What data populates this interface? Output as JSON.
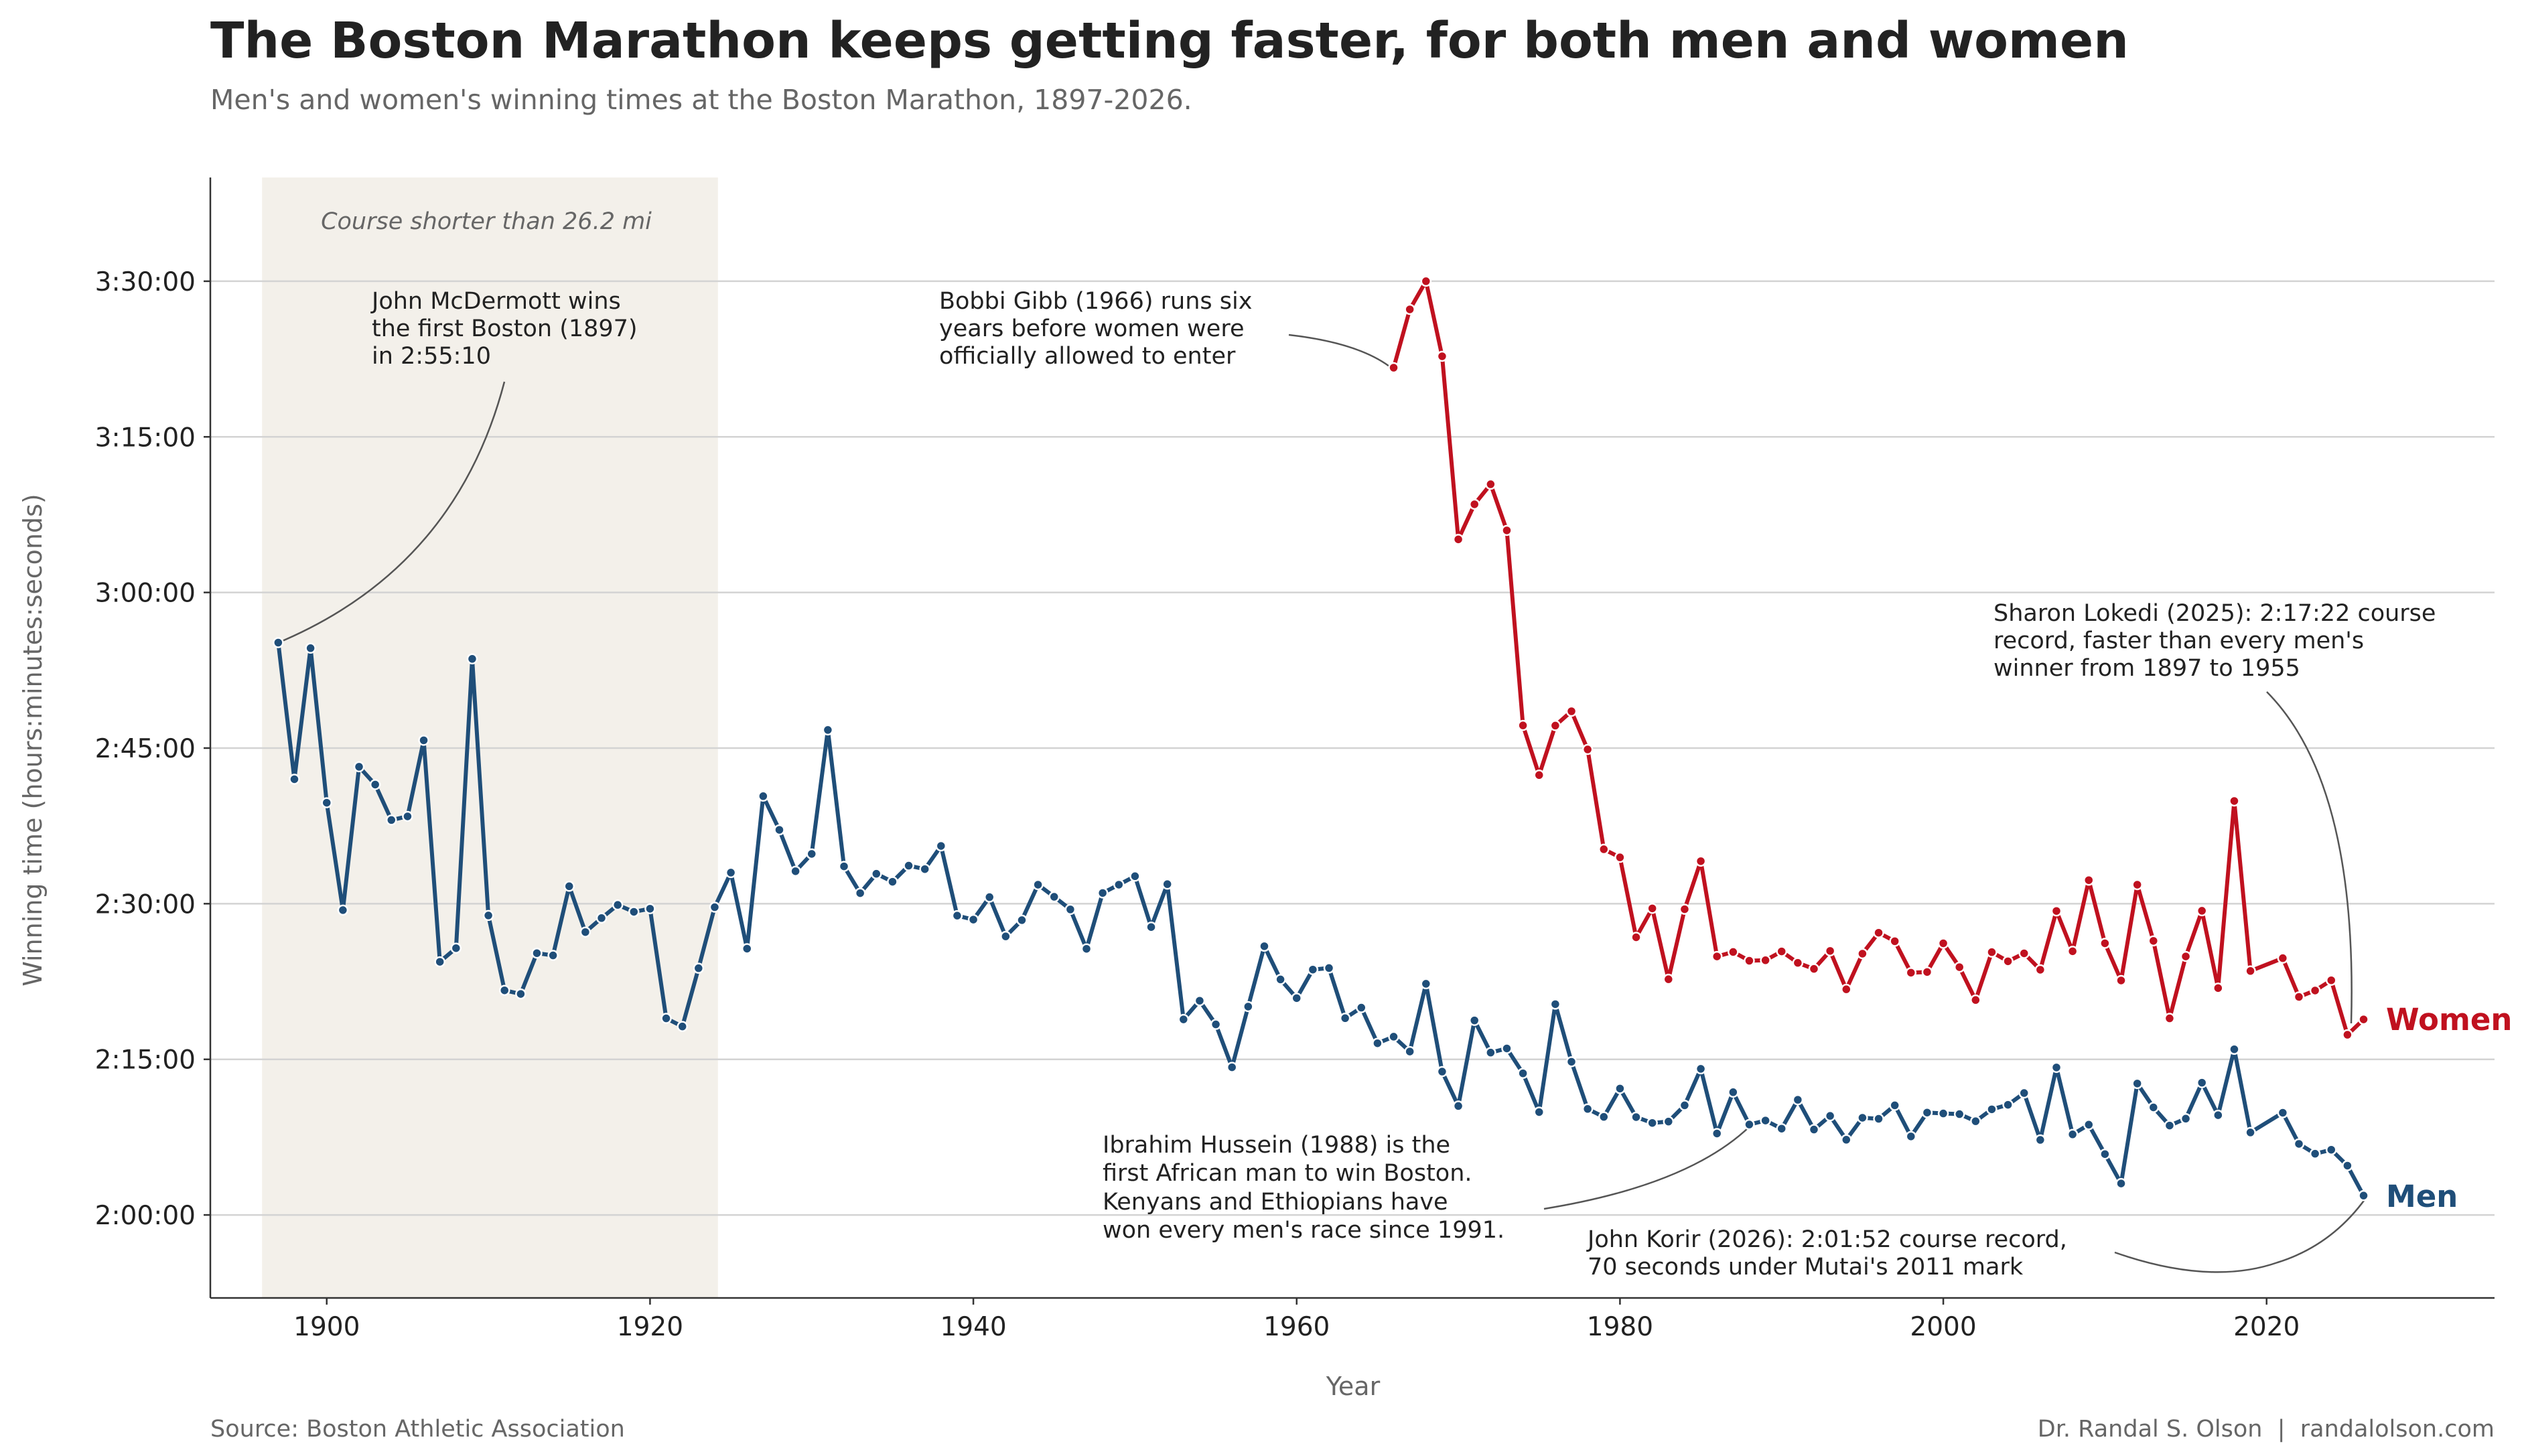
{
  "chart_data": {
    "type": "line",
    "title": "The Boston Marathon keeps getting faster, for both men and women",
    "subtitle": "Men's and women's winning times at the Boston Marathon, 1897-2026.",
    "xlabel": "Year",
    "ylabel": "Winning time (hours:minutes:seconds)",
    "xlim": [
      1892.8,
      2034.1
    ],
    "ylim": [
      "1:52:00",
      "3:40:00"
    ],
    "x_ticks": [
      "1900",
      "1920",
      "1940",
      "1960",
      "1980",
      "2000",
      "2020"
    ],
    "y_ticks": [
      "2:00:00",
      "2:15:00",
      "2:30:00",
      "2:45:00",
      "3:00:00",
      "3:15:00",
      "3:30:00"
    ],
    "grid": "horizontal",
    "shaded_region": {
      "x": [
        1896,
        1924.2
      ],
      "label": "Course shorter than 26.2 mi",
      "color": "#f3f0ea"
    },
    "series": [
      {
        "name": "Men",
        "color": "#1f4e79",
        "points": [
          [
            1897,
            "2:55:10"
          ],
          [
            1898,
            "2:42:00"
          ],
          [
            1899,
            "2:54:38"
          ],
          [
            1900,
            "2:39:44"
          ],
          [
            1901,
            "2:29:23"
          ],
          [
            1902,
            "2:43:12"
          ],
          [
            1903,
            "2:41:29"
          ],
          [
            1904,
            "2:38:04"
          ],
          [
            1905,
            "2:38:25"
          ],
          [
            1906,
            "2:45:45"
          ],
          [
            1907,
            "2:24:24"
          ],
          [
            1908,
            "2:25:43"
          ],
          [
            1909,
            "2:53:36"
          ],
          [
            1910,
            "2:28:52"
          ],
          [
            1911,
            "2:21:39"
          ],
          [
            1912,
            "2:21:18"
          ],
          [
            1913,
            "2:25:14"
          ],
          [
            1914,
            "2:25:01"
          ],
          [
            1915,
            "2:31:41"
          ],
          [
            1916,
            "2:27:16"
          ],
          [
            1917,
            "2:28:37"
          ],
          [
            1918,
            "2:29:53"
          ],
          [
            1919,
            "2:29:13"
          ],
          [
            1920,
            "2:29:31"
          ],
          [
            1921,
            "2:18:57"
          ],
          [
            1922,
            "2:18:10"
          ],
          [
            1923,
            "2:23:47"
          ],
          [
            1924,
            "2:29:40"
          ],
          [
            1925,
            "2:33:00"
          ],
          [
            1926,
            "2:25:40"
          ],
          [
            1927,
            "2:40:22"
          ],
          [
            1928,
            "2:37:07"
          ],
          [
            1929,
            "2:33:08"
          ],
          [
            1930,
            "2:34:48"
          ],
          [
            1931,
            "2:46:45"
          ],
          [
            1932,
            "2:33:36"
          ],
          [
            1933,
            "2:31:01"
          ],
          [
            1934,
            "2:32:53"
          ],
          [
            1935,
            "2:32:07"
          ],
          [
            1936,
            "2:33:40"
          ],
          [
            1937,
            "2:33:20"
          ],
          [
            1938,
            "2:35:34"
          ],
          [
            1939,
            "2:28:51"
          ],
          [
            1940,
            "2:28:28"
          ],
          [
            1941,
            "2:30:38"
          ],
          [
            1942,
            "2:26:51"
          ],
          [
            1943,
            "2:28:25"
          ],
          [
            1944,
            "2:31:50"
          ],
          [
            1945,
            "2:30:40"
          ],
          [
            1946,
            "2:29:27"
          ],
          [
            1947,
            "2:25:39"
          ],
          [
            1948,
            "2:31:02"
          ],
          [
            1949,
            "2:31:50"
          ],
          [
            1950,
            "2:32:39"
          ],
          [
            1951,
            "2:27:45"
          ],
          [
            1952,
            "2:31:53"
          ],
          [
            1953,
            "2:18:51"
          ],
          [
            1954,
            "2:20:39"
          ],
          [
            1955,
            "2:18:22"
          ],
          [
            1956,
            "2:14:14"
          ],
          [
            1957,
            "2:20:05"
          ],
          [
            1958,
            "2:25:54"
          ],
          [
            1959,
            "2:22:42"
          ],
          [
            1960,
            "2:20:54"
          ],
          [
            1961,
            "2:23:39"
          ],
          [
            1962,
            "2:23:48"
          ],
          [
            1963,
            "2:18:58"
          ],
          [
            1964,
            "2:19:59"
          ],
          [
            1965,
            "2:16:33"
          ],
          [
            1966,
            "2:17:11"
          ],
          [
            1967,
            "2:15:45"
          ],
          [
            1968,
            "2:22:17"
          ],
          [
            1969,
            "2:13:49"
          ],
          [
            1970,
            "2:10:30"
          ],
          [
            1971,
            "2:18:45"
          ],
          [
            1972,
            "2:15:39"
          ],
          [
            1973,
            "2:16:03"
          ],
          [
            1974,
            "2:13:39"
          ],
          [
            1975,
            "2:09:55"
          ],
          [
            1976,
            "2:20:19"
          ],
          [
            1977,
            "2:14:46"
          ],
          [
            1978,
            "2:10:13"
          ],
          [
            1979,
            "2:09:27"
          ],
          [
            1980,
            "2:12:11"
          ],
          [
            1981,
            "2:09:26"
          ],
          [
            1982,
            "2:08:52"
          ],
          [
            1983,
            "2:09:00"
          ],
          [
            1984,
            "2:10:34"
          ],
          [
            1985,
            "2:14:05"
          ],
          [
            1986,
            "2:07:51"
          ],
          [
            1987,
            "2:11:50"
          ],
          [
            1988,
            "2:08:43"
          ],
          [
            1989,
            "2:09:06"
          ],
          [
            1990,
            "2:08:19"
          ],
          [
            1991,
            "2:11:06"
          ],
          [
            1992,
            "2:08:14"
          ],
          [
            1993,
            "2:09:33"
          ],
          [
            1994,
            "2:07:15"
          ],
          [
            1995,
            "2:09:22"
          ],
          [
            1996,
            "2:09:16"
          ],
          [
            1997,
            "2:10:34"
          ],
          [
            1998,
            "2:07:34"
          ],
          [
            1999,
            "2:09:52"
          ],
          [
            2000,
            "2:09:47"
          ],
          [
            2001,
            "2:09:43"
          ],
          [
            2002,
            "2:09:02"
          ],
          [
            2003,
            "2:10:11"
          ],
          [
            2004,
            "2:10:37"
          ],
          [
            2005,
            "2:11:45"
          ],
          [
            2006,
            "2:07:14"
          ],
          [
            2007,
            "2:14:13"
          ],
          [
            2008,
            "2:07:46"
          ],
          [
            2009,
            "2:08:42"
          ],
          [
            2010,
            "2:05:52"
          ],
          [
            2011,
            "2:03:02"
          ],
          [
            2012,
            "2:12:40"
          ],
          [
            2013,
            "2:10:22"
          ],
          [
            2014,
            "2:08:37"
          ],
          [
            2015,
            "2:09:17"
          ],
          [
            2016,
            "2:12:45"
          ],
          [
            2017,
            "2:09:37"
          ],
          [
            2018,
            "2:15:58"
          ],
          [
            2019,
            "2:07:57"
          ],
          [
            2021,
            "2:09:51"
          ],
          [
            2022,
            "2:06:51"
          ],
          [
            2023,
            "2:05:54"
          ],
          [
            2024,
            "2:06:17"
          ],
          [
            2025,
            "2:04:45"
          ],
          [
            2026,
            "2:01:52"
          ]
        ]
      },
      {
        "name": "Women",
        "color": "#c0111f",
        "points": [
          [
            1966,
            "3:21:40"
          ],
          [
            1967,
            "3:27:17"
          ],
          [
            1968,
            "3:30:00"
          ],
          [
            1969,
            "3:22:46"
          ],
          [
            1970,
            "3:05:07"
          ],
          [
            1971,
            "3:08:30"
          ],
          [
            1972,
            "3:10:26"
          ],
          [
            1973,
            "3:05:59"
          ],
          [
            1974,
            "2:47:11"
          ],
          [
            1975,
            "2:42:24"
          ],
          [
            1976,
            "2:47:10"
          ],
          [
            1977,
            "2:48:33"
          ],
          [
            1978,
            "2:44:52"
          ],
          [
            1979,
            "2:35:15"
          ],
          [
            1980,
            "2:34:28"
          ],
          [
            1981,
            "2:26:46"
          ],
          [
            1982,
            "2:29:33"
          ],
          [
            1983,
            "2:22:43"
          ],
          [
            1984,
            "2:29:28"
          ],
          [
            1985,
            "2:34:06"
          ],
          [
            1986,
            "2:24:55"
          ],
          [
            1987,
            "2:25:21"
          ],
          [
            1988,
            "2:24:30"
          ],
          [
            1989,
            "2:24:33"
          ],
          [
            1990,
            "2:25:24"
          ],
          [
            1991,
            "2:24:18"
          ],
          [
            1992,
            "2:23:43"
          ],
          [
            1993,
            "2:25:27"
          ],
          [
            1994,
            "2:21:45"
          ],
          [
            1995,
            "2:25:11"
          ],
          [
            1996,
            "2:27:12"
          ],
          [
            1997,
            "2:26:23"
          ],
          [
            1998,
            "2:23:21"
          ],
          [
            1999,
            "2:23:25"
          ],
          [
            2000,
            "2:26:11"
          ],
          [
            2001,
            "2:23:53"
          ],
          [
            2002,
            "2:20:43"
          ],
          [
            2003,
            "2:25:20"
          ],
          [
            2004,
            "2:24:27"
          ],
          [
            2005,
            "2:25:13"
          ],
          [
            2006,
            "2:23:38"
          ],
          [
            2007,
            "2:29:18"
          ],
          [
            2008,
            "2:25:25"
          ],
          [
            2009,
            "2:32:16"
          ],
          [
            2010,
            "2:26:11"
          ],
          [
            2011,
            "2:22:36"
          ],
          [
            2012,
            "2:31:50"
          ],
          [
            2013,
            "2:26:25"
          ],
          [
            2014,
            "2:18:57"
          ],
          [
            2015,
            "2:24:55"
          ],
          [
            2016,
            "2:29:19"
          ],
          [
            2017,
            "2:21:52"
          ],
          [
            2018,
            "2:39:54"
          ],
          [
            2019,
            "2:23:31"
          ],
          [
            2021,
            "2:24:45"
          ],
          [
            2022,
            "2:21:01"
          ],
          [
            2023,
            "2:21:38"
          ],
          [
            2024,
            "2:22:37"
          ],
          [
            2025,
            "2:17:22"
          ],
          [
            2026,
            "2:18:51"
          ]
        ]
      }
    ],
    "annotations": [
      {
        "lines": [
          "John McDermott wins",
          "the first Boston (1897)",
          "in 2:55:10"
        ]
      },
      {
        "lines": [
          "Bobbi Gibb (1966) runs six",
          "years before women were",
          "officially allowed to enter"
        ]
      },
      {
        "lines": [
          "Sharon Lokedi (2025): 2:17:22 course",
          "record, faster than every men's",
          "winner from 1897 to 1955"
        ]
      },
      {
        "lines": [
          "Ibrahim Hussein (1988) is the",
          "first African man to win Boston.",
          "Kenyans and Ethiopians have",
          "won every men's race since 1991."
        ]
      },
      {
        "lines": [
          "John Korir (2026): 2:01:52 course record,",
          "70 seconds under Mutai's 2011 mark"
        ]
      }
    ],
    "source": "Source: Boston Athletic Association",
    "credit": "Dr. Randal S. Olson  |  randalolson.com"
  }
}
